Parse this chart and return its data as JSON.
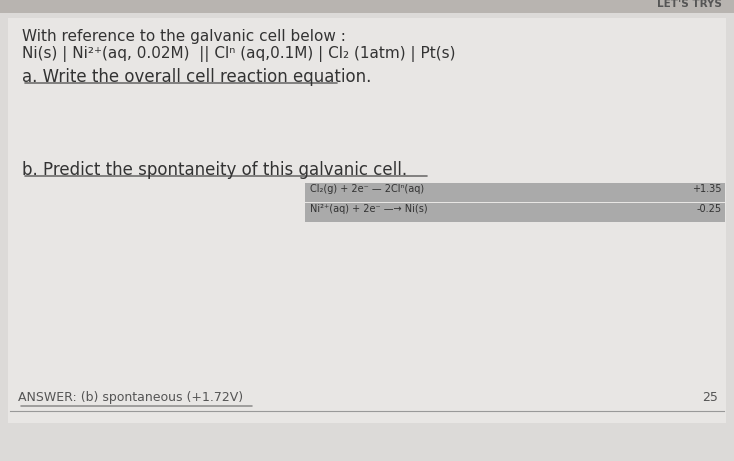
{
  "bg_top_color": "#b8b4b0",
  "paper_color": "#dcdad8",
  "header_text": "LET'S TRYS",
  "header_color": "#555555",
  "title_line1": "With reference to the galvanic cell below :",
  "title_line2": "Ni(s) | Ni²⁺(aq, 0.02M)  || Clⁿ (aq,0.1M) | Cl₂ (1atm) | Pt(s)",
  "question_a": "a. Write the overall cell reaction equation.",
  "question_b": "b. Predict the spontaneity of this galvanic cell.",
  "row1_left": "Cl₂(g) + 2e⁻ — 2Clⁿ(aq)",
  "row1_right": "+1.35",
  "row2_left": "Ni²⁺(aq) + 2e⁻ —→ Ni(s)",
  "row2_right": "-0.25",
  "answer_text": "ANSWER: (b) spontaneous (+1.72V)",
  "page_number": "25",
  "row_bg_color": "#aaaaaa",
  "text_color": "#333333",
  "answer_color": "#555555",
  "underline_color": "#333333"
}
